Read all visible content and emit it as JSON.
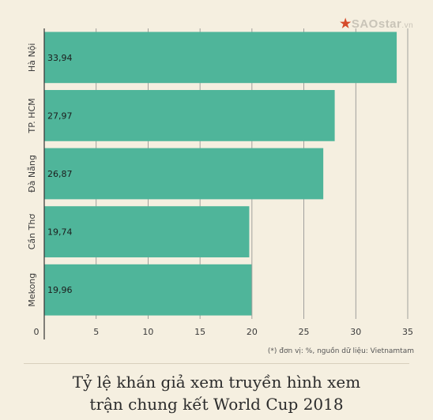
{
  "logo": {
    "brand": "SAOstar",
    "suffix": ".vn",
    "icon": "star-icon"
  },
  "chart_data": {
    "type": "bar",
    "orientation": "horizontal",
    "categories": [
      "Hà Nội",
      "TP. HCM",
      "Đà Nẵng",
      "Cần Thơ",
      "Mekong"
    ],
    "values": [
      33.94,
      27.97,
      26.87,
      19.74,
      19.96
    ],
    "value_labels": [
      "33,94",
      "27,97",
      "26,87",
      "19,74",
      "19,96"
    ],
    "xlim": [
      0,
      35
    ],
    "xticks": [
      0,
      5,
      10,
      15,
      20,
      25,
      30,
      35
    ],
    "grid": true,
    "bar_color": "#4fb59a",
    "title": "Tỷ lệ khán giả xem truyền hình xem trận chung kết World Cup 2018",
    "note": "(*) đơn vị: %, nguồn dữ liệu: Vietnamtam"
  },
  "title_lines": [
    "Tỷ lệ khán giả xem truyền hình xem",
    "trận chung kết World Cup 2018"
  ]
}
